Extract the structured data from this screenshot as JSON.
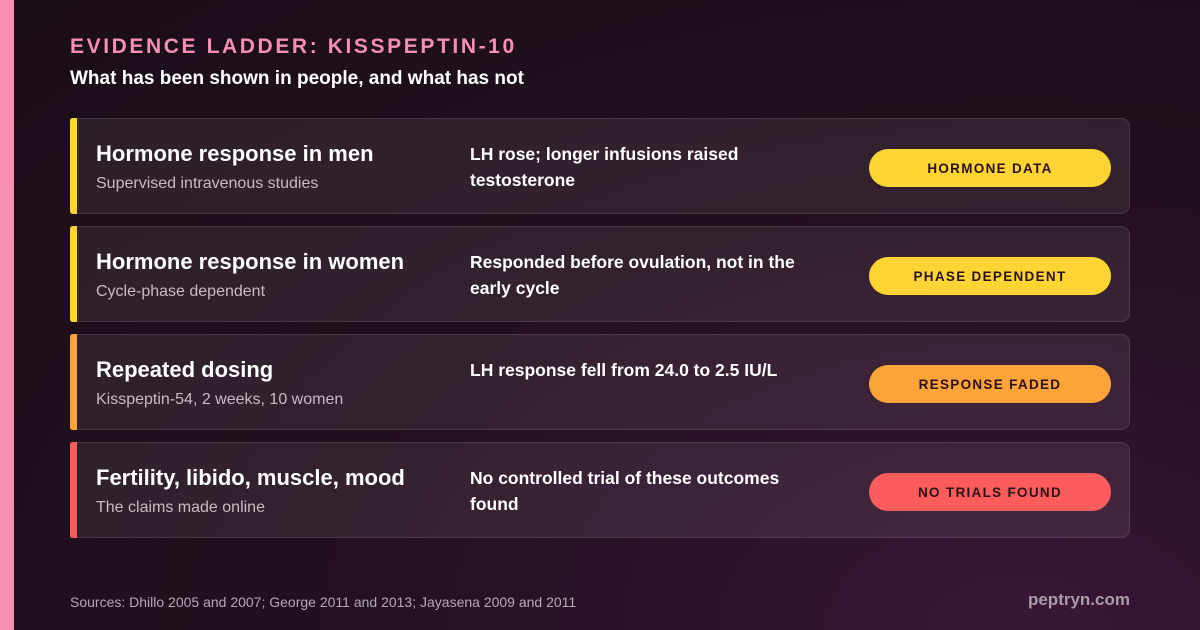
{
  "eyebrow": "EVIDENCE LADDER: KISSPEPTIN-10",
  "subtitle": "What has been shown in people, and what has not",
  "colors": {
    "accent_pink": "#f78fb3",
    "yellow": "#fcd535",
    "orange": "#fca43a",
    "red": "#fd5c5c"
  },
  "rows": [
    {
      "title": "Hormone response in men",
      "sub": "Supervised intravenous studies",
      "finding": "LH rose; longer infusions raised testosterone",
      "badge": "HORMONE DATA",
      "color": "#fcd535"
    },
    {
      "title": "Hormone response in women",
      "sub": "Cycle-phase dependent",
      "finding": "Responded before ovulation, not in the early cycle",
      "badge": "PHASE DEPENDENT",
      "color": "#fcd535"
    },
    {
      "title": "Repeated dosing",
      "sub": "Kisspeptin-54, 2 weeks, 10 women",
      "finding": "LH response fell from 24.0 to 2.5 IU/L",
      "badge": "RESPONSE FADED",
      "color": "#fca43a"
    },
    {
      "title": "Fertility, libido, muscle, mood",
      "sub": "The claims made online",
      "finding": "No controlled trial of these outcomes found",
      "badge": "NO TRIALS FOUND",
      "color": "#fd5c5c"
    }
  ],
  "sources": "Sources: Dhillo 2005 and 2007; George 2011 and 2013; Jayasena 2009 and 2011",
  "brand": "peptryn.com"
}
